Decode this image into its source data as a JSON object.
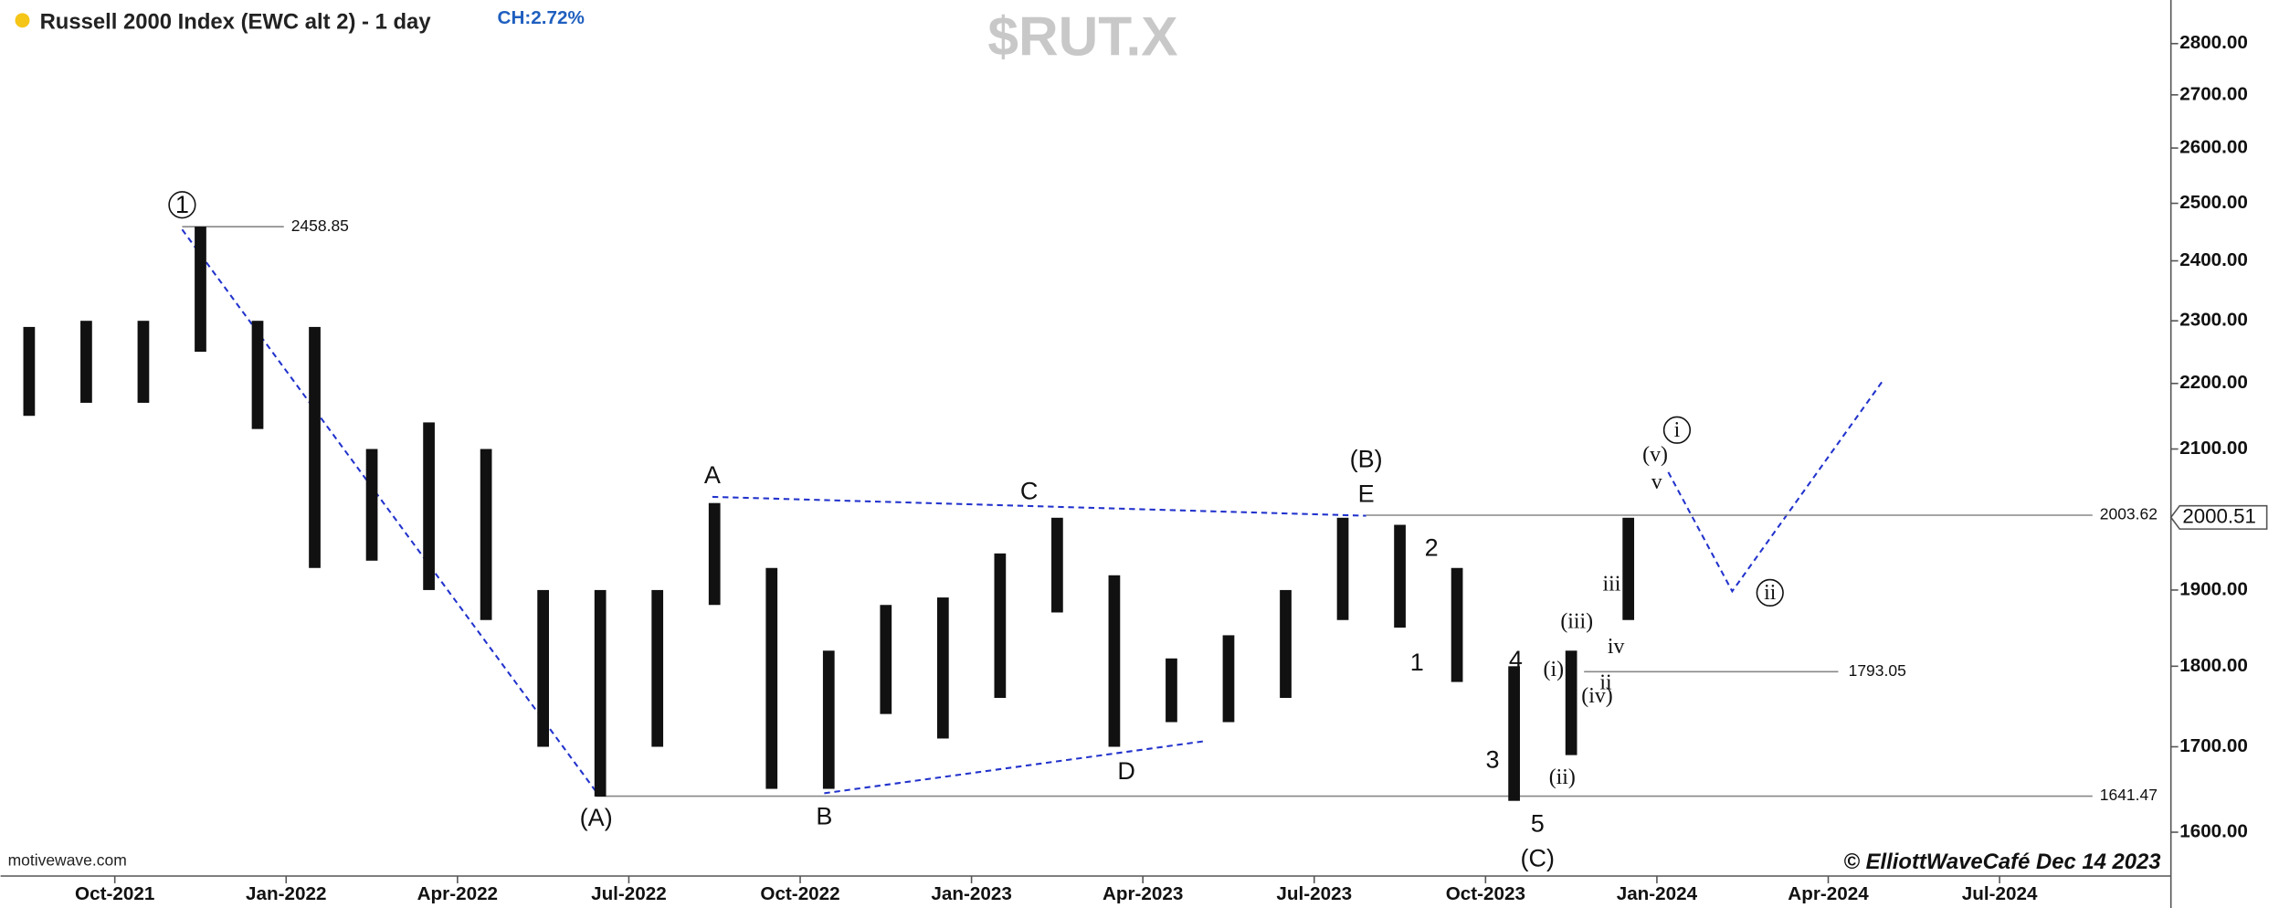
{
  "chart_data": {
    "type": "range_bar",
    "title": "Russell 2000 Index (EWC alt 2) - 1 day",
    "change": "CH:2.72%",
    "symbol": "$RUT.X",
    "watermark": "motivewave.com",
    "copyright": "© ElliottWaveCafé Dec 14 2023",
    "log_scale": true,
    "color": "#111111",
    "x": [
      "2021-08",
      "2021-09",
      "2021-10",
      "2021-11",
      "2021-12",
      "2022-01",
      "2022-02",
      "2022-03",
      "2022-04",
      "2022-05",
      "2022-06",
      "2022-07",
      "2022-08",
      "2022-09",
      "2022-10",
      "2022-11",
      "2022-12",
      "2023-01",
      "2023-02",
      "2023-03",
      "2023-04",
      "2023-05",
      "2023-06",
      "2023-07",
      "2023-08",
      "2023-09",
      "2023-10",
      "2023-11",
      "2023-12"
    ],
    "high": [
      2290,
      2300,
      2300,
      2459,
      2300,
      2290,
      2100,
      2140,
      2100,
      1900,
      1900,
      1900,
      2021,
      1930,
      1820,
      1880,
      1890,
      1950,
      2000,
      1920,
      1810,
      1840,
      1900,
      2000,
      1990,
      1930,
      1800,
      1820,
      2000
    ],
    "low": [
      2150,
      2170,
      2170,
      2250,
      2130,
      1930,
      1940,
      1900,
      1860,
      1700,
      1641,
      1700,
      1880,
      1650,
      1650,
      1740,
      1710,
      1760,
      1870,
      1700,
      1730,
      1730,
      1760,
      1860,
      1850,
      1780,
      1636,
      1690,
      1860
    ],
    "xlim": [
      "2021-08",
      "2024-10"
    ],
    "xticks": [
      {
        "value": "2021-10",
        "label": "Oct-2021"
      },
      {
        "value": "2022-01",
        "label": "Jan-2022"
      },
      {
        "value": "2022-04",
        "label": "Apr-2022"
      },
      {
        "value": "2022-07",
        "label": "Jul-2022"
      },
      {
        "value": "2022-10",
        "label": "Oct-2022"
      },
      {
        "value": "2023-01",
        "label": "Jan-2023"
      },
      {
        "value": "2023-04",
        "label": "Apr-2023"
      },
      {
        "value": "2023-07",
        "label": "Jul-2023"
      },
      {
        "value": "2023-10",
        "label": "Oct-2023"
      },
      {
        "value": "2024-01",
        "label": "Jan-2024"
      },
      {
        "value": "2024-04",
        "label": "Apr-2024"
      },
      {
        "value": "2024-07",
        "label": "Jul-2024"
      }
    ],
    "ylim": [
      1551,
      2888
    ],
    "yticks": [
      {
        "value": 1600,
        "label": "1600.00"
      },
      {
        "value": 1700,
        "label": "1700.00"
      },
      {
        "value": 1800,
        "label": "1800.00"
      },
      {
        "value": 1900,
        "label": "1900.00"
      },
      {
        "value": 2000,
        "label": "2000.00"
      },
      {
        "value": 2100,
        "label": "2100.00"
      },
      {
        "value": 2200,
        "label": "2200.00"
      },
      {
        "value": 2300,
        "label": "2300.00"
      },
      {
        "value": 2400,
        "label": "2400.00"
      },
      {
        "value": 2500,
        "label": "2500.00"
      },
      {
        "value": 2600,
        "label": "2600.00"
      },
      {
        "value": 2700,
        "label": "2700.00"
      },
      {
        "value": 2800,
        "label": "2800.00"
      }
    ],
    "price_lines": [
      2458.85,
      2003.62,
      1793.05,
      1641.47
    ],
    "last_price": 2000.51,
    "annotations": [
      "1",
      "A",
      "C",
      "(B)",
      "E",
      "2",
      "1",
      "4",
      "3",
      "5",
      "(C)",
      "(A)",
      "B",
      "D",
      "(i)",
      "(ii)",
      "(iii)",
      "(iv)",
      "ii",
      "iv",
      "iii",
      "v",
      "(v)",
      "i",
      "ii"
    ]
  }
}
